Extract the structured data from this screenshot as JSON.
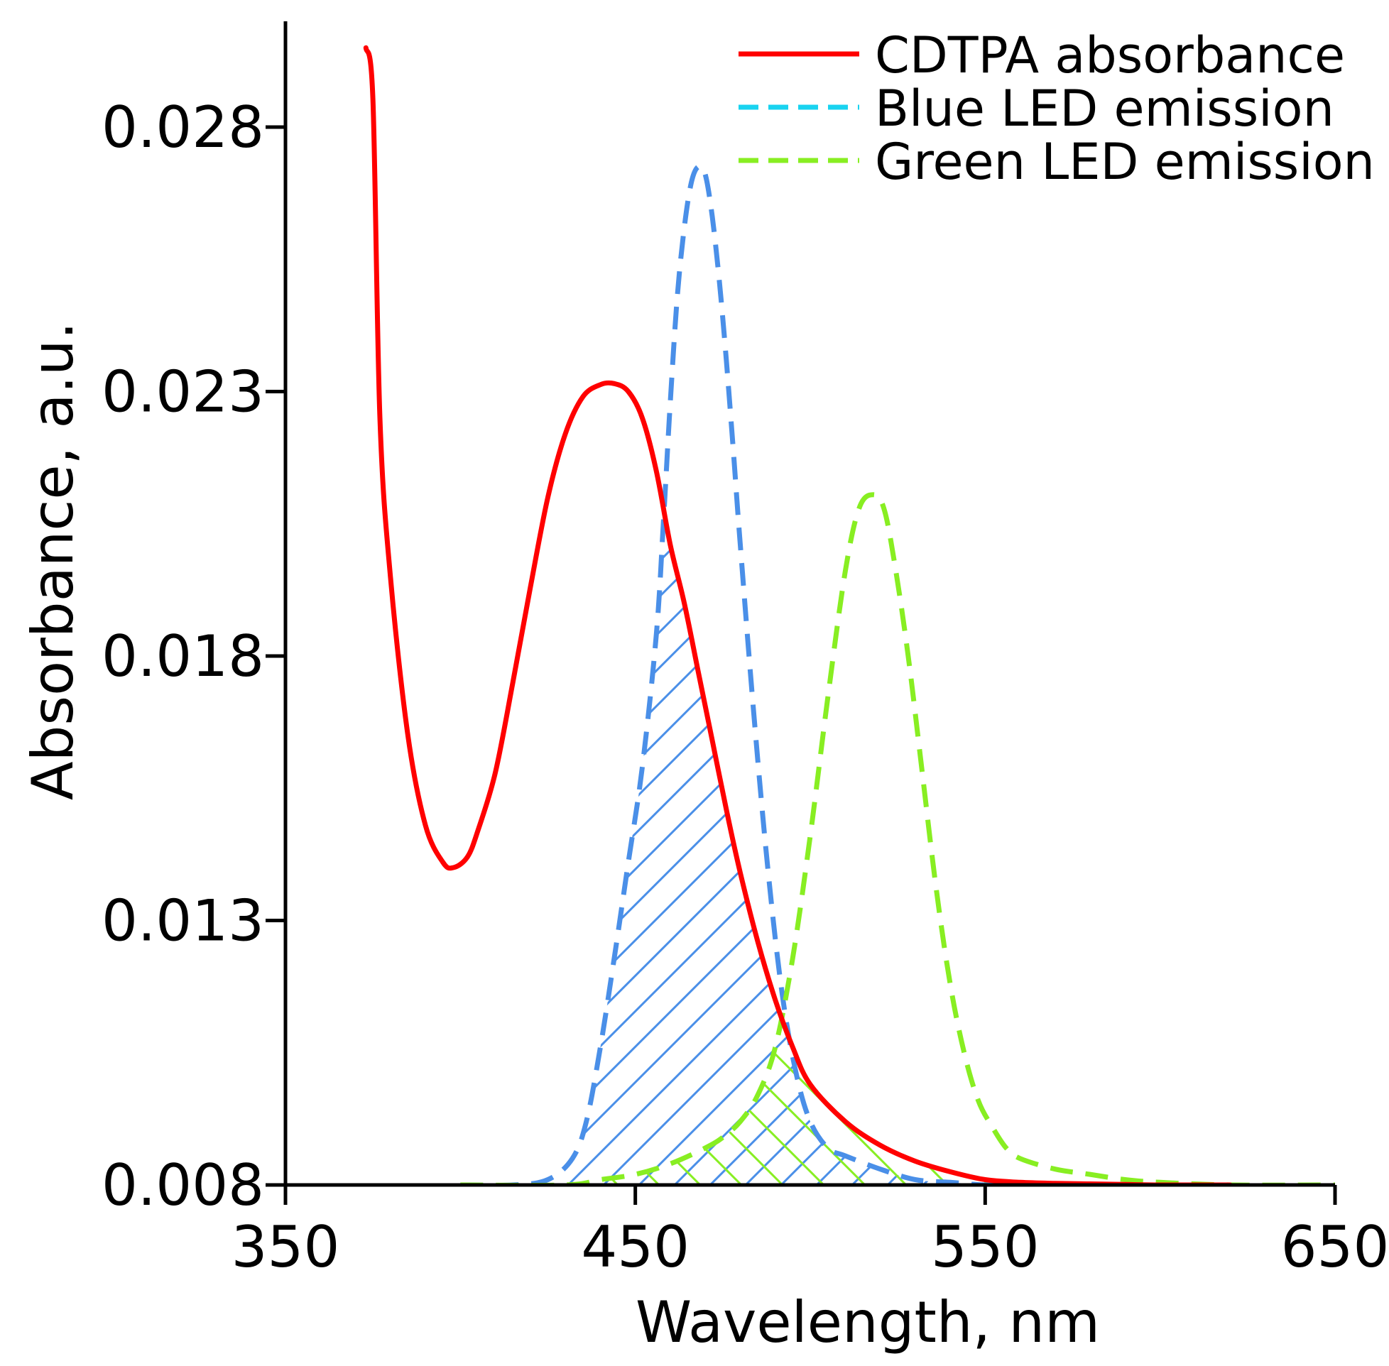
{
  "chart_data": {
    "type": "line",
    "title": "",
    "xlabel": "Wavelength, nm",
    "ylabel": "Absorbance, a.u.",
    "xlim": [
      350,
      650
    ],
    "ylim": [
      0.008,
      0.03
    ],
    "x_ticks": [
      {
        "value": 350,
        "label": "350"
      },
      {
        "value": 450,
        "label": "450"
      },
      {
        "value": 550,
        "label": "550"
      },
      {
        "value": 650,
        "label": "650"
      }
    ],
    "y_ticks": [
      {
        "value": 0.008,
        "label": "0.008"
      },
      {
        "value": 0.013,
        "label": "0.013"
      },
      {
        "value": 0.018,
        "label": "0.018"
      },
      {
        "value": 0.023,
        "label": "0.023"
      },
      {
        "value": 0.028,
        "label": "0.028"
      }
    ],
    "legend_position": "top-right",
    "series": [
      {
        "name": "CDTPA absorbance",
        "color": "#ff0000",
        "style": "solid",
        "x": [
          373,
          375,
          377,
          380,
          385,
          390,
          395,
          398,
          402,
          405,
          410,
          415,
          420,
          425,
          430,
          435,
          440,
          444,
          448,
          452,
          456,
          460,
          464,
          468,
          472,
          476,
          480,
          485,
          490,
          495,
          500,
          510,
          520,
          530,
          540,
          550,
          560,
          570,
          580,
          590,
          600,
          620
        ],
        "y": [
          0.0295,
          0.0285,
          0.0225,
          0.0195,
          0.0165,
          0.0148,
          0.0141,
          0.014,
          0.0142,
          0.0147,
          0.0158,
          0.0175,
          0.0193,
          0.021,
          0.0222,
          0.0229,
          0.02313,
          0.02315,
          0.023,
          0.0225,
          0.0215,
          0.0201,
          0.019,
          0.0177,
          0.0164,
          0.0151,
          0.0139,
          0.0126,
          0.0115,
          0.0106,
          0.0099,
          0.0092,
          0.00875,
          0.00845,
          0.00825,
          0.0081,
          0.00805,
          0.00803,
          0.00802,
          0.00801,
          0.008,
          0.008
        ]
      },
      {
        "name": "Blue LED emission",
        "color": "#4a8fe8",
        "legend_color": "#19d3f0",
        "style": "dashed",
        "x": [
          400,
          415,
          425,
          432,
          436,
          440,
          444,
          448,
          452,
          456,
          458,
          460,
          462,
          464,
          466,
          468,
          470,
          472,
          474,
          476,
          478,
          480,
          484,
          488,
          492,
          496,
          500,
          505,
          510,
          520,
          530,
          540,
          550,
          560,
          600
        ],
        "y": [
          0.008,
          0.008,
          0.0081,
          0.0085,
          0.0092,
          0.0106,
          0.0123,
          0.0141,
          0.0159,
          0.0184,
          0.0205,
          0.0228,
          0.0248,
          0.0261,
          0.02695,
          0.02725,
          0.0271,
          0.0263,
          0.0251,
          0.0236,
          0.0219,
          0.0201,
          0.0168,
          0.0139,
          0.0116,
          0.0101,
          0.0092,
          0.0087,
          0.00855,
          0.0083,
          0.0081,
          0.00805,
          0.008,
          0.008,
          0.008
        ]
      },
      {
        "name": "Green LED emission",
        "color": "#88ee22",
        "style": "dashed",
        "x": [
          400,
          430,
          440,
          450,
          460,
          470,
          475,
          480,
          485,
          490,
          495,
          500,
          505,
          510,
          514,
          518,
          521,
          524,
          528,
          532,
          536,
          540,
          544,
          548,
          552,
          556,
          560,
          570,
          580,
          590,
          600,
          620,
          650
        ],
        "y": [
          0.008,
          0.008,
          0.0081,
          0.0082,
          0.0084,
          0.0087,
          0.0089,
          0.0092,
          0.0097,
          0.0106,
          0.0123,
          0.0146,
          0.0172,
          0.0196,
          0.0208,
          0.02105,
          0.0208,
          0.0198,
          0.018,
          0.0158,
          0.0136,
          0.0118,
          0.0105,
          0.0096,
          0.0091,
          0.0087,
          0.0085,
          0.0083,
          0.0082,
          0.0081,
          0.00805,
          0.008,
          0.008
        ]
      }
    ],
    "annotations": [
      {
        "type": "hatched-overlap",
        "series": "Blue LED emission",
        "with": "CDTPA absorbance",
        "color": "#4a8fe8"
      },
      {
        "type": "hatched-overlap",
        "series": "Green LED emission",
        "with": "CDTPA absorbance",
        "color": "#88ee22"
      }
    ]
  }
}
